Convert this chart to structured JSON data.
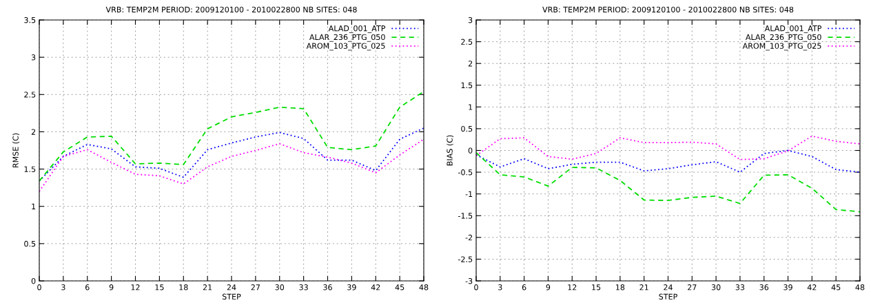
{
  "chart_data": [
    {
      "type": "line",
      "title": "VRB: TEMP2M PERIOD: 2009120100 - 2010022800 NB SITES: 048",
      "xlabel": "STEP",
      "ylabel": "RMSE (C)",
      "x": [
        0,
        3,
        6,
        9,
        12,
        15,
        18,
        21,
        24,
        27,
        30,
        33,
        36,
        39,
        42,
        45,
        48
      ],
      "series": [
        {
          "name": "ALAD_001_ATP",
          "color": "#0000ff",
          "line_style": "dotted",
          "values": [
            1.34,
            1.67,
            1.83,
            1.77,
            1.53,
            1.51,
            1.39,
            1.76,
            1.85,
            1.93,
            1.99,
            1.91,
            1.62,
            1.62,
            1.48,
            1.9,
            2.05
          ]
        },
        {
          "name": "ALAR_236_PTG_050",
          "color": "#00dd00",
          "line_style": "dashed",
          "values": [
            1.34,
            1.73,
            1.93,
            1.94,
            1.57,
            1.58,
            1.56,
            2.04,
            2.2,
            2.26,
            2.33,
            2.31,
            1.79,
            1.76,
            1.81,
            2.33,
            2.54
          ]
        },
        {
          "name": "AROM_103_PTG_025",
          "color": "#ff00ff",
          "line_style": "dotted",
          "values": [
            1.2,
            1.67,
            1.76,
            1.59,
            1.43,
            1.41,
            1.3,
            1.53,
            1.67,
            1.75,
            1.84,
            1.72,
            1.66,
            1.58,
            1.45,
            1.69,
            1.9
          ]
        }
      ],
      "xlim": [
        0,
        48
      ],
      "xticks": [
        0,
        3,
        6,
        9,
        12,
        15,
        18,
        21,
        24,
        27,
        30,
        33,
        36,
        39,
        42,
        45,
        48
      ],
      "ylim": [
        0,
        3.5
      ],
      "yticks": [
        0,
        0.5,
        1,
        1.5,
        2,
        2.5,
        3,
        3.5
      ],
      "grid": true,
      "legend": "top right"
    },
    {
      "type": "line",
      "title": "VRB: TEMP2M PERIOD: 2009120100 - 2010022800 NB SITES: 048",
      "xlabel": "STEP",
      "ylabel": "BIAS (C)",
      "x": [
        0,
        3,
        6,
        9,
        12,
        15,
        18,
        21,
        24,
        27,
        30,
        33,
        36,
        39,
        42,
        45,
        48
      ],
      "series": [
        {
          "name": "ALAD_001_ATP",
          "color": "#0000ff",
          "line_style": "dotted",
          "values": [
            -0.1,
            -0.38,
            -0.19,
            -0.42,
            -0.32,
            -0.27,
            -0.27,
            -0.47,
            -0.42,
            -0.33,
            -0.26,
            -0.5,
            -0.07,
            0.0,
            -0.14,
            -0.44,
            -0.5
          ]
        },
        {
          "name": "ALAR_236_PTG_050",
          "color": "#00dd00",
          "line_style": "dashed",
          "values": [
            -0.05,
            -0.56,
            -0.61,
            -0.82,
            -0.39,
            -0.4,
            -0.69,
            -1.14,
            -1.15,
            -1.08,
            -1.05,
            -1.22,
            -0.57,
            -0.56,
            -0.87,
            -1.36,
            -1.41
          ]
        },
        {
          "name": "AROM_103_PTG_025",
          "color": "#ff00ff",
          "line_style": "dotted",
          "values": [
            -0.12,
            0.27,
            0.29,
            -0.14,
            -0.2,
            -0.07,
            0.29,
            0.18,
            0.18,
            0.19,
            0.15,
            -0.21,
            -0.19,
            -0.01,
            0.33,
            0.21,
            0.15
          ]
        }
      ],
      "xlim": [
        0,
        48
      ],
      "xticks": [
        0,
        3,
        6,
        9,
        12,
        15,
        18,
        21,
        24,
        27,
        30,
        33,
        36,
        39,
        42,
        45,
        48
      ],
      "ylim": [
        -3,
        3
      ],
      "yticks": [
        -3,
        -2.5,
        -2,
        -1.5,
        -1,
        -0.5,
        0,
        0.5,
        1,
        1.5,
        2,
        2.5,
        3
      ],
      "grid": true,
      "legend": "top right"
    }
  ]
}
